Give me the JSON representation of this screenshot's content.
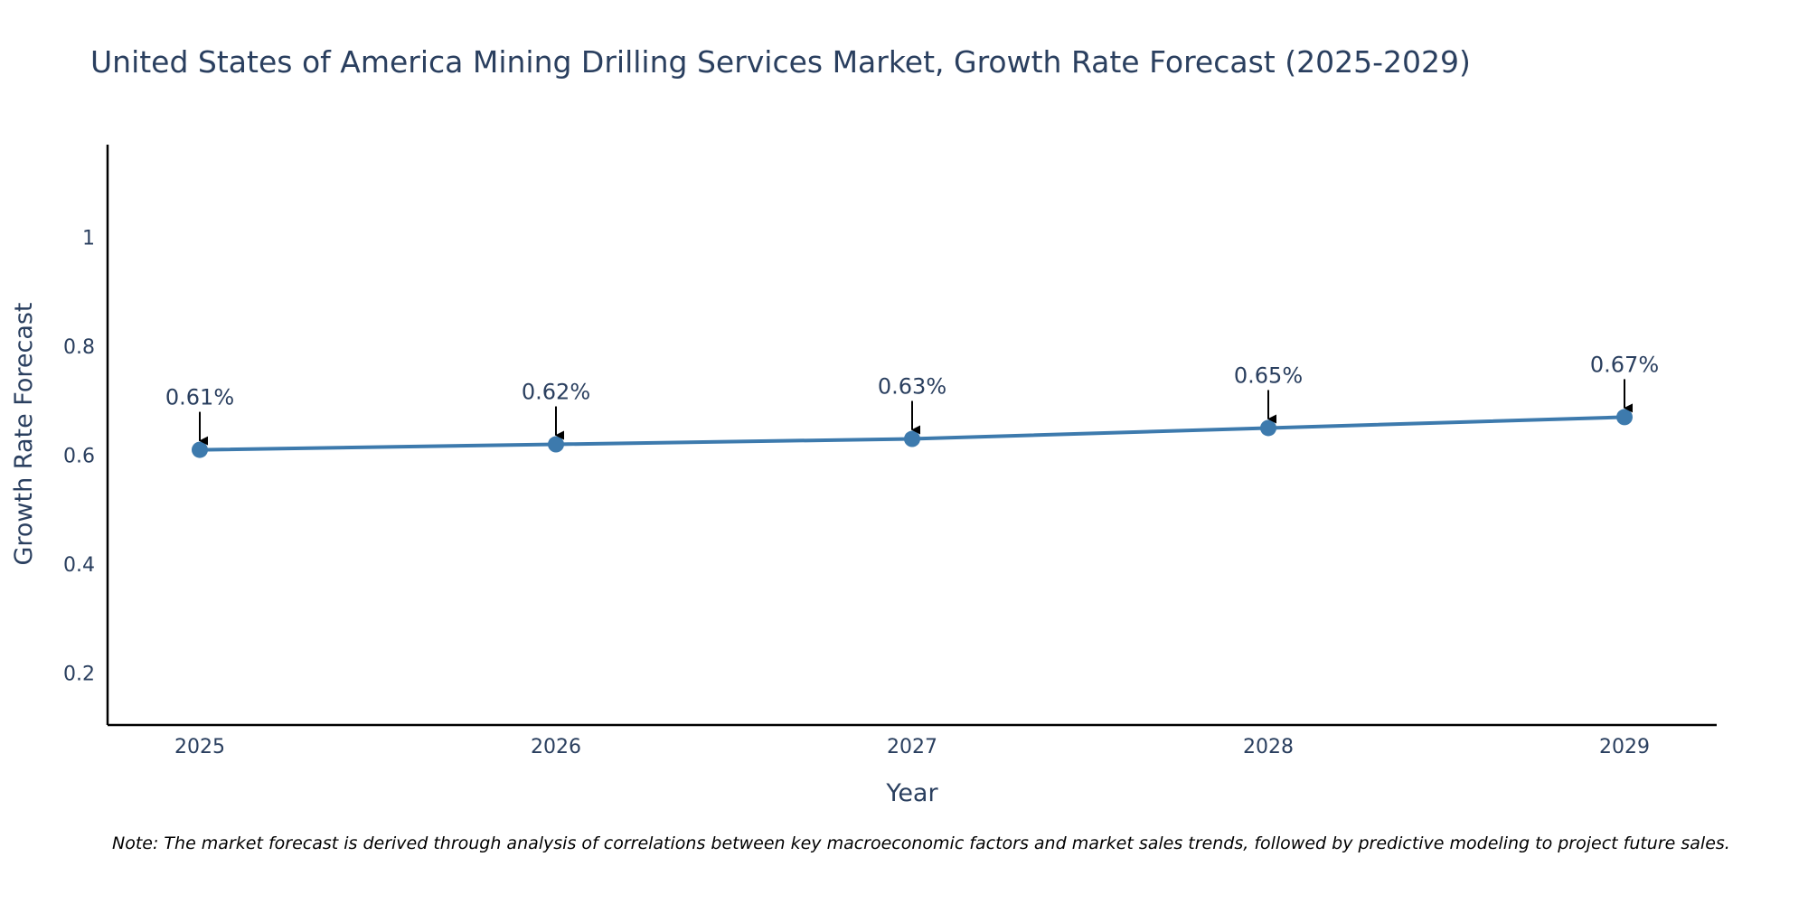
{
  "chart_data": {
    "type": "line",
    "title": "United States of America Mining Drilling Services Market, Growth Rate Forecast (2025-2029)",
    "xlabel": "Year",
    "ylabel": "Growth Rate Forecast",
    "categories": [
      "2025",
      "2026",
      "2027",
      "2028",
      "2029"
    ],
    "values": [
      0.61,
      0.62,
      0.63,
      0.65,
      0.67
    ],
    "data_labels": [
      "0.61%",
      "0.62%",
      "0.63%",
      "0.65%",
      "0.67%"
    ],
    "y_ticks": [
      0.2,
      0.4,
      0.6,
      0.8,
      1
    ],
    "y_tick_labels": [
      "0.2",
      "0.4",
      "0.6",
      "0.8",
      "1"
    ],
    "ylim": [
      0.105,
      1.17
    ],
    "grid": false,
    "legend": "none",
    "line_color": "#3d7aad",
    "marker_color": "#3d7aad",
    "arrow_color": "#000000"
  },
  "note": "Note: The market forecast is derived through analysis of correlations between key macroeconomic factors and market sales trends, followed by predictive modeling to project future sales."
}
